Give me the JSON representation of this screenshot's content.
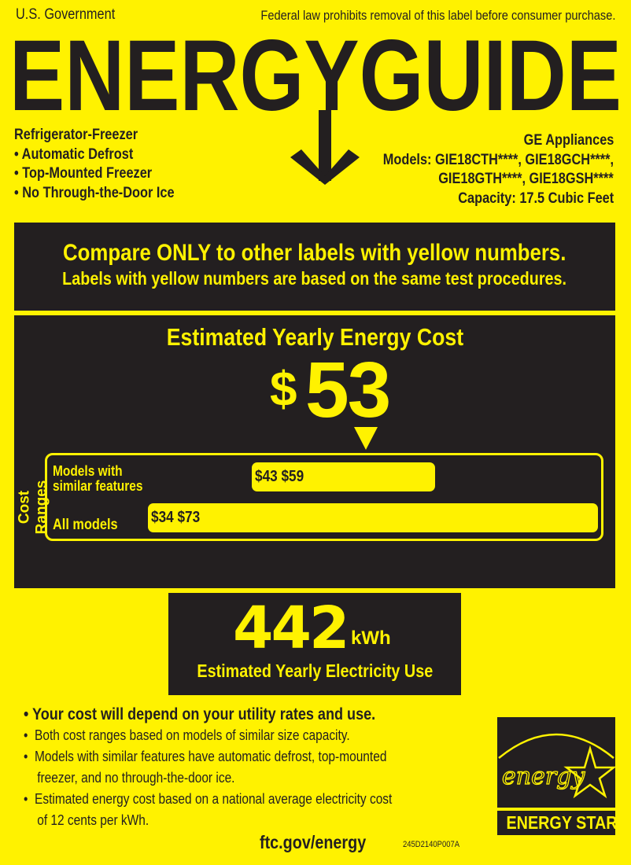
{
  "header": {
    "gov": "U.S. Government",
    "notice": "Federal law prohibits removal of this label before consumer purchase.",
    "logo": "ENERGYGUIDE"
  },
  "product": {
    "type": "Refrigerator-Freezer",
    "features": [
      "• Automatic Defrost",
      "• Top-Mounted Freezer",
      "• No Through-the-Door Ice"
    ]
  },
  "maker": {
    "brand": "GE Appliances",
    "models_line1": "Models: GIE18CTH****, GIE18GCH****,",
    "models_line2": "GIE18GTH****, GIE18GSH****",
    "capacity": "Capacity: 17.5 Cubic Feet"
  },
  "compare": {
    "line1": "Compare ONLY to other labels with yellow numbers.",
    "line2": "Labels with yellow numbers are based on the same test procedures."
  },
  "cost": {
    "title": "Estimated Yearly Energy Cost",
    "dollar": "$",
    "value": "53",
    "ranges_label": "Cost Ranges",
    "similar": {
      "label1": "Models with",
      "label2": "similar features",
      "low": "$43",
      "high": "$59"
    },
    "all": {
      "label": "All models",
      "low": "$34",
      "high": "$73"
    }
  },
  "usage": {
    "value": "442",
    "unit": "kWh",
    "label": "Estimated Yearly Electricity Use"
  },
  "notes": {
    "main": "•  Your cost will depend on your utility rates and use.",
    "items": [
      "•  Both cost ranges based on models of similar size capacity.",
      "•  Models with similar features have automatic defrost, top-mounted",
      "    freezer, and no through-the-door ice.",
      "•  Estimated energy cost based on a national average electricity cost",
      "    of 12 cents per kWh."
    ]
  },
  "footer": {
    "url": "ftc.gov/energy",
    "code": "245D2140P007A"
  },
  "energy_star": {
    "script": "energy",
    "label": "ENERGY STAR"
  },
  "colors": {
    "yellow": "#fff200",
    "dark": "#231f20"
  }
}
